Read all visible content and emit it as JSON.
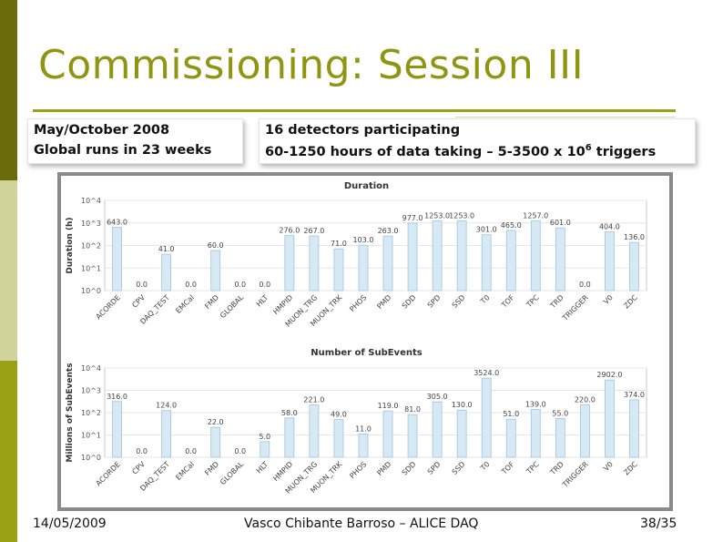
{
  "slide": {
    "title": "Commissioning: Session III",
    "box1_line1": "May/October 2008",
    "box1_line2": "Global runs in 23 weeks",
    "box2_line1": "16 detectors participating",
    "box2_line2_pre": "60-1250 hours of data taking – 5-3500 x 10",
    "box2_line2_sup": "6",
    "box2_line2_post": " triggers",
    "footer_date": "14/05/2009",
    "footer_author": "Vasco Chibante Barroso – ALICE DAQ",
    "footer_page": "38/35",
    "colors": {
      "accent": "#8f9510",
      "sidebar_dark": "#6b6b0c",
      "sidebar_light": "#d0d49a",
      "bar_fill": "#d6e9f5",
      "bar_stroke": "#9fc4dc"
    }
  },
  "chart_data": [
    {
      "type": "bar",
      "title": "Duration",
      "ylabel": "Duration (h)",
      "yscale": "log",
      "ylim": [
        1,
        10000
      ],
      "yticks": [
        "10^0",
        "10^1",
        "10^2",
        "10^3",
        "10^4"
      ],
      "grid": true,
      "categories": [
        "ACORDE",
        "CPV",
        "DAQ_TEST",
        "EMCal",
        "FMD",
        "GLOBAL",
        "HLT",
        "HMPID",
        "MUON_TRG",
        "MUON_TRK",
        "PHOS",
        "PMD",
        "SDD",
        "SPD",
        "SSD",
        "T0",
        "TOF",
        "TPC",
        "TRD",
        "TRIGGER",
        "V0",
        "ZDC"
      ],
      "values": [
        643.0,
        0.0,
        41.0,
        0.0,
        60.0,
        0.0,
        0.0,
        276.0,
        267.0,
        71.0,
        103.0,
        263.0,
        977.0,
        1253.0,
        1253.0,
        301.0,
        465.0,
        1257.0,
        601.0,
        0.0,
        404.0,
        136.0
      ],
      "labels": [
        "643.0",
        "0.0",
        "41.0",
        "0.0",
        "60.0",
        "0.0",
        "0.0",
        "276.0",
        "267.0",
        "71.0",
        "103.0",
        "263.0",
        "977.0",
        "1253.0",
        "1253.0",
        "301.0",
        "465.0",
        "1257.0",
        "601.0",
        "0.0",
        "404.0",
        "136.0"
      ]
    },
    {
      "type": "bar",
      "title": "Number of SubEvents",
      "ylabel": "Millions of SubEvents",
      "yscale": "log",
      "ylim": [
        1,
        10000
      ],
      "yticks": [
        "10^0",
        "10^1",
        "10^2",
        "10^3",
        "10^4"
      ],
      "grid": true,
      "categories": [
        "ACORDE",
        "CPV",
        "DAQ_TEST",
        "EMCal",
        "FMD",
        "GLOBAL",
        "HLT",
        "HMPID",
        "MUON_TRG",
        "MUON_TRK",
        "PHOS",
        "PMD",
        "SDD",
        "SPD",
        "SSD",
        "T0",
        "TOF",
        "TPC",
        "TRD",
        "TRIGGER",
        "V0",
        "ZDC"
      ],
      "values": [
        316.0,
        0.0,
        124.0,
        0.0,
        22.0,
        0.0,
        5.0,
        58.0,
        221.0,
        49.0,
        11.0,
        119.0,
        81.0,
        305.0,
        130.0,
        3524.0,
        51.0,
        139.0,
        55.0,
        220.0,
        2902.0,
        374.0
      ],
      "labels": [
        "316.0",
        "0.0",
        "124.0",
        "0.0",
        "22.0",
        "0.0",
        "5.0",
        "58.0",
        "221.0",
        "49.0",
        "11.0",
        "119.0",
        "81.0",
        "305.0",
        "130.0",
        "3524.0",
        "51.0",
        "139.0",
        "55.0",
        "220.0",
        "2902.0",
        "374.0"
      ]
    }
  ]
}
